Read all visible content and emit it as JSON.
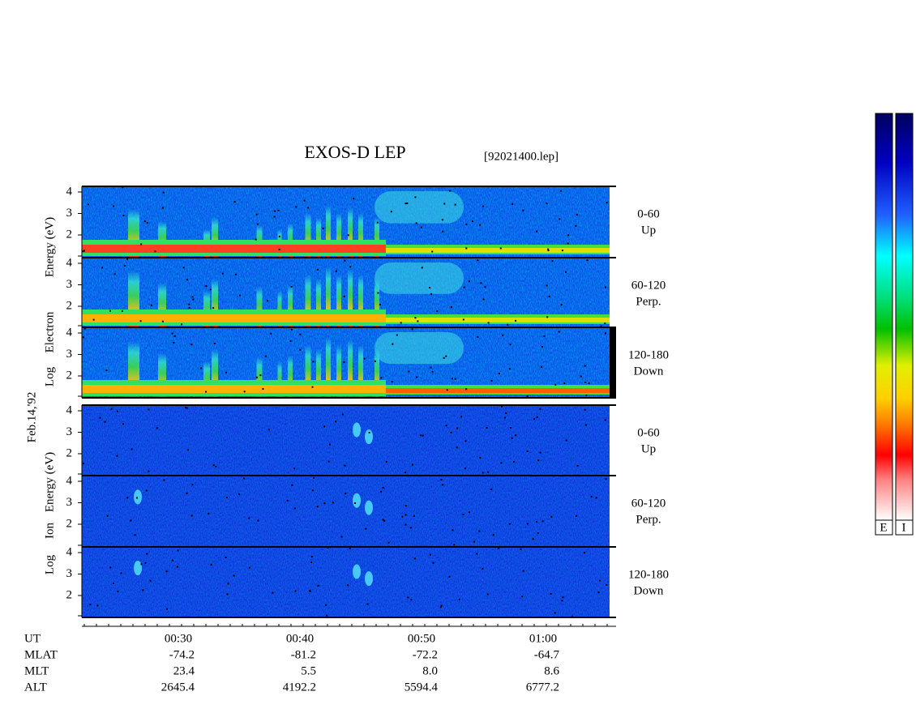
{
  "title": "EXOS-D LEP",
  "file": "[92021400.lep]",
  "date": "Feb.14,'92",
  "electron": {
    "axis_label": [
      "Log",
      "Electron",
      "Energy (eV)"
    ],
    "panels": [
      {
        "angle": "0-60",
        "direction": "Up",
        "yticks": [
          "4",
          "3",
          "2"
        ]
      },
      {
        "angle": "60-120",
        "direction": "Perp.",
        "yticks": [
          "4",
          "3",
          "2"
        ]
      },
      {
        "angle": "120-180",
        "direction": "Down",
        "yticks": [
          "4",
          "3",
          "2"
        ]
      }
    ]
  },
  "ion": {
    "axis_label": [
      "Log",
      "Ion",
      "Energy (eV)"
    ],
    "panels": [
      {
        "angle": "0-60",
        "direction": "Up",
        "yticks": [
          "4",
          "3",
          "2"
        ]
      },
      {
        "angle": "60-120",
        "direction": "Perp.",
        "yticks": [
          "4",
          "3",
          "2"
        ]
      },
      {
        "angle": "120-180",
        "direction": "Down",
        "yticks": [
          "4",
          "3",
          "2"
        ]
      }
    ]
  },
  "footer": {
    "rows": [
      {
        "label": "UT",
        "values": [
          "00:30",
          "00:40",
          "00:50",
          "01:00"
        ]
      },
      {
        "label": "MLAT",
        "values": [
          "-74.2",
          "-81.2",
          "-72.2",
          "-64.7"
        ]
      },
      {
        "label": "MLT",
        "values": [
          "23.4",
          "5.5",
          "8.0",
          "8.6"
        ]
      },
      {
        "label": "ALT",
        "values": [
          "2645.4",
          "4192.2",
          "5594.4",
          "6777.2"
        ]
      }
    ]
  },
  "colorbar": {
    "labels": [
      "E",
      "I"
    ]
  }
}
